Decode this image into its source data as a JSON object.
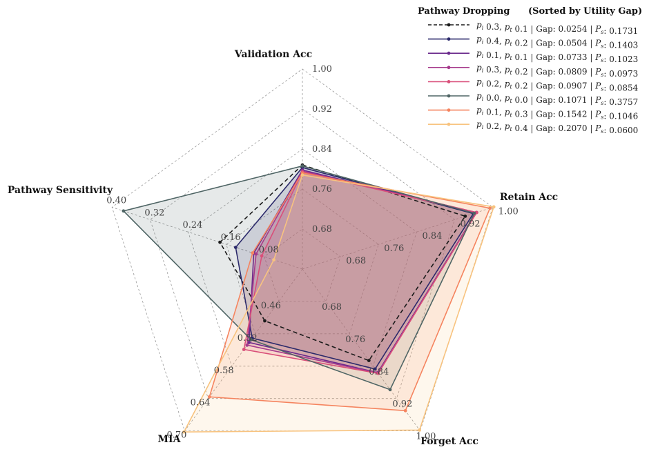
{
  "chart_data": {
    "type": "radar",
    "legend": {
      "title": "Pathway Dropping",
      "subtitle": "(Sorted by Utility Gap)",
      "placement": "top-right"
    },
    "axes": [
      {
        "name": "Validation Acc",
        "ticks": [
          "0.68",
          "0.76",
          "0.84",
          "0.92",
          "1.00"
        ],
        "range": [
          0.6,
          1.0
        ]
      },
      {
        "name": "Retain Acc",
        "ticks": [
          "0.68",
          "0.76",
          "0.84",
          "0.92",
          "1.00"
        ],
        "range": [
          0.6,
          1.0
        ]
      },
      {
        "name": "Forget Acc",
        "ticks": [
          "0.68",
          "0.76",
          "0.84",
          "0.92",
          "1.00"
        ],
        "range": [
          0.6,
          1.0
        ]
      },
      {
        "name": "MIA",
        "ticks": [
          "0.46",
          "0.52",
          "0.58",
          "0.64",
          "0.70"
        ],
        "range": [
          0.4,
          0.7
        ]
      },
      {
        "name": "Pathway Sensitivity",
        "ticks": [
          "0.08",
          "0.16",
          "0.24",
          "0.32",
          "0.40"
        ],
        "range": [
          0.0,
          0.4
        ]
      }
    ],
    "series": [
      {
        "pi": "0.3",
        "pt": "0.1",
        "gap": "0.0254",
        "ps": "0.1731",
        "color": "#1a1a1a",
        "dashed": true,
        "fill": false,
        "values": [
          0.808,
          0.942,
          0.826,
          0.496,
          0.1731
        ]
      },
      {
        "pi": "0.4",
        "pt": "0.2",
        "gap": "0.0504",
        "ps": "0.1403",
        "color": "#2c2a6b",
        "dashed": false,
        "fill": true,
        "values": [
          0.803,
          0.959,
          0.847,
          0.528,
          0.1403
        ]
      },
      {
        "pi": "0.1",
        "pt": "0.1",
        "gap": "0.0733",
        "ps": "0.1023",
        "color": "#6a2a8c",
        "dashed": false,
        "fill": true,
        "values": [
          0.798,
          0.965,
          0.856,
          0.536,
          0.1023
        ]
      },
      {
        "pi": "0.3",
        "pt": "0.2",
        "gap": "0.0809",
        "ps": "0.0973",
        "color": "#a63a8c",
        "dashed": false,
        "fill": true,
        "values": [
          0.796,
          0.966,
          0.857,
          0.541,
          0.0973
        ]
      },
      {
        "pi": "0.2",
        "pt": "0.2",
        "gap": "0.0907",
        "ps": "0.0854",
        "color": "#d94f7a",
        "dashed": false,
        "fill": true,
        "values": [
          0.794,
          0.966,
          0.858,
          0.549,
          0.0854
        ]
      },
      {
        "pi": "0.0",
        "pt": "0.0",
        "gap": "0.1071",
        "ps": "0.3757",
        "color": "#4f6565",
        "dashed": false,
        "fill": true,
        "values": [
          0.806,
          0.961,
          0.898,
          0.531,
          0.3757
        ]
      },
      {
        "pi": "0.1",
        "pt": "0.3",
        "gap": "0.1542",
        "ps": "0.1046",
        "color": "#f5845f",
        "dashed": false,
        "fill": true,
        "values": [
          0.792,
          0.994,
          0.95,
          0.637,
          0.1046
        ]
      },
      {
        "pi": "0.2",
        "pt": "0.4",
        "gap": "0.2070",
        "ps": "0.0600",
        "color": "#f8c37f",
        "dashed": false,
        "fill": true,
        "values": [
          0.788,
          1.002,
          0.998,
          0.702,
          0.06
        ]
      }
    ]
  }
}
